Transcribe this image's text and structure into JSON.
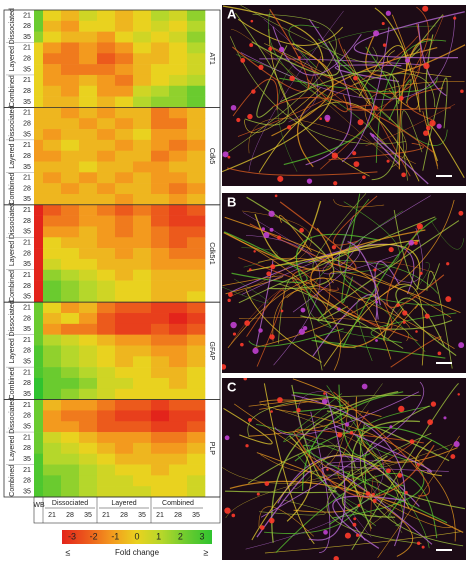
{
  "chart_data": {
    "type": "heatmap",
    "genes": [
      "AT1",
      "Cdk5",
      "Cdk5r1",
      "GFAP",
      "PLP"
    ],
    "row_groups": [
      "Dissociated",
      "Layered",
      "Combined"
    ],
    "days": [
      "21",
      "28",
      "35"
    ],
    "wb_label": "WB",
    "column_groups": [
      "Dissociated",
      "Layered",
      "Combined"
    ],
    "clim": [
      -3,
      3
    ],
    "colormap": [
      "#e3241b",
      "#ec5a1c",
      "#f39a1e",
      "#e9d21f",
      "#b5d72b",
      "#6acb2f",
      "#2fc32f"
    ],
    "colorbar_ticks": [
      -3,
      -2,
      -1,
      0,
      1,
      2,
      3
    ],
    "colorbar_label": "Fold change",
    "colorbar_low": "≤",
    "colorbar_high": "≥",
    "values": [
      [
        [
          2,
          0,
          -0.5,
          0.5,
          0,
          -0.5,
          0,
          1,
          0.5,
          1.5
        ],
        [
          2,
          -0.5,
          -1,
          0,
          0,
          -0.5,
          0,
          0.5,
          0,
          1
        ],
        [
          1.5,
          0,
          -0.5,
          -0.5,
          -1,
          0,
          0.5,
          0,
          0.5,
          1.5
        ],
        [
          0,
          -1,
          -1.5,
          -1,
          -1.5,
          -1,
          0,
          -0.5,
          0,
          1
        ],
        [
          0,
          -1.5,
          -1.5,
          -1,
          -2,
          -1.5,
          -0.5,
          -0.5,
          0,
          0.5
        ],
        [
          0,
          -1,
          -1.5,
          -1.5,
          -1.5,
          -1,
          -0.5,
          0,
          0,
          0.5
        ],
        [
          0,
          -1,
          -1,
          -0.5,
          -1,
          -1.5,
          -0.5,
          0,
          0.5,
          1
        ],
        [
          0,
          -0.5,
          -1,
          0,
          -1,
          -1,
          0.5,
          1,
          1.5,
          2
        ],
        [
          0,
          -0.5,
          -0.5,
          0,
          -0.5,
          0,
          1,
          1.5,
          1.5,
          2
        ]
      ],
      [
        [
          -0.5,
          -0.5,
          -1,
          -0.5,
          -1,
          -0.5,
          -0.5,
          -1.5,
          -1,
          -0.5
        ],
        [
          -0.5,
          -0.5,
          -0.5,
          -1,
          -0.5,
          -1,
          -0.5,
          -1.5,
          -1.5,
          -0.5
        ],
        [
          -0.5,
          -1,
          -0.5,
          -0.5,
          -1,
          -0.5,
          0,
          -1,
          -1,
          -0.5
        ],
        [
          -1,
          -0.5,
          0,
          -0.5,
          -0.5,
          -1,
          -0.5,
          -1,
          -1.5,
          -1
        ],
        [
          -1,
          -1,
          -0.5,
          -0.5,
          -1,
          -0.5,
          -0.5,
          -1.5,
          -1,
          -0.5
        ],
        [
          -0.5,
          -0.5,
          -0.5,
          0,
          -0.5,
          -0.5,
          -1,
          -1,
          -0.5,
          -0.5
        ],
        [
          -0.5,
          -1,
          -0.5,
          -1,
          -0.5,
          -1,
          -0.5,
          -1,
          -1,
          -0.5
        ],
        [
          -0.5,
          -0.5,
          -1,
          -0.5,
          -1,
          -0.5,
          -0.5,
          -1,
          -1.5,
          -1
        ],
        [
          -0.5,
          -0.5,
          -0.5,
          -0.5,
          -0.5,
          -1,
          -0.5,
          -0.5,
          -1,
          -0.5
        ]
      ],
      [
        [
          -3,
          -2,
          -1.5,
          -1,
          -1.5,
          -2,
          -1.5,
          -2,
          -2.5,
          -2
        ],
        [
          -3,
          -1.5,
          -1.5,
          -1,
          -1,
          -1.5,
          -1,
          -2,
          -2.5,
          -2.5
        ],
        [
          -3,
          -1,
          -1,
          -0.5,
          -1,
          -1.5,
          -1,
          -1.5,
          -2,
          -2
        ],
        [
          -3,
          0,
          -0.5,
          -0.5,
          -1,
          -1,
          -1,
          -1.5,
          -2,
          -1.5
        ],
        [
          -3,
          0,
          0,
          -0.5,
          -0.5,
          -1,
          -0.5,
          -1,
          -1.5,
          -1.5
        ],
        [
          -3,
          0.5,
          0,
          0,
          -0.5,
          -0.5,
          -0.5,
          -1,
          -1,
          -1
        ],
        [
          -3,
          1.5,
          1,
          0.5,
          0,
          -0.5,
          0,
          -0.5,
          -0.5,
          -0.5
        ],
        [
          -3,
          2,
          1.5,
          1,
          0.5,
          0,
          0,
          -0.5,
          -0.5,
          -0.5
        ],
        [
          -3,
          2,
          1.5,
          1,
          0.5,
          0,
          0,
          -0.5,
          -0.5,
          0
        ]
      ],
      [
        [
          2,
          0,
          -1,
          -0.5,
          -1.5,
          -2,
          -2,
          -2.5,
          -2.5,
          -2
        ],
        [
          2,
          -0.5,
          0,
          -1,
          -2,
          -2.5,
          -2.5,
          -2.5,
          -3,
          -2.5
        ],
        [
          2,
          -1,
          -1.5,
          -1.5,
          -2,
          -2.5,
          -2.5,
          -2,
          -2.5,
          -2
        ],
        [
          2,
          1,
          0.5,
          0,
          -0.5,
          -1,
          -1,
          -1.5,
          -1.5,
          -1
        ],
        [
          2.5,
          1.5,
          1,
          0.5,
          0,
          -0.5,
          -0.5,
          -1,
          -1,
          -0.5
        ],
        [
          2.5,
          1.5,
          1,
          0.5,
          0,
          -0.5,
          0,
          -0.5,
          -1,
          -0.5
        ],
        [
          2.5,
          2,
          1.5,
          1,
          0.5,
          0,
          0,
          -0.5,
          -0.5,
          0
        ],
        [
          3,
          2,
          2,
          1.5,
          0.5,
          0.5,
          0,
          0,
          -0.5,
          0
        ],
        [
          3,
          2,
          1.5,
          1,
          0.5,
          0,
          0,
          0,
          0,
          0
        ]
      ],
      [
        [
          2,
          -0.5,
          -1,
          -1,
          -1.5,
          -2,
          -2,
          -2.5,
          -2,
          -2
        ],
        [
          2,
          -1,
          -1.5,
          -1.5,
          -2,
          -2.5,
          -2.5,
          -3,
          -2.5,
          -2.5
        ],
        [
          2,
          -1,
          -1,
          -1.5,
          -2,
          -2,
          -2,
          -2.5,
          -2.5,
          -2
        ],
        [
          2,
          0.5,
          0,
          -0.5,
          -1,
          -1,
          -1,
          -1.5,
          -1.5,
          -1
        ],
        [
          2,
          1,
          0.5,
          0,
          -0.5,
          -1,
          -0.5,
          -1,
          -1,
          -0.5
        ],
        [
          2.5,
          1,
          1,
          0.5,
          0,
          -0.5,
          -0.5,
          -0.5,
          -0.5,
          0
        ],
        [
          2.5,
          1.5,
          1.5,
          1,
          0.5,
          0,
          0,
          -0.5,
          0,
          0
        ],
        [
          2.5,
          2,
          1.5,
          1,
          0.5,
          0.5,
          0,
          0,
          0,
          0.5
        ],
        [
          2.5,
          2,
          1.5,
          1,
          0.5,
          0.5,
          0.5,
          0,
          0,
          0.5
        ]
      ]
    ]
  },
  "panels": [
    "A",
    "B",
    "C"
  ]
}
